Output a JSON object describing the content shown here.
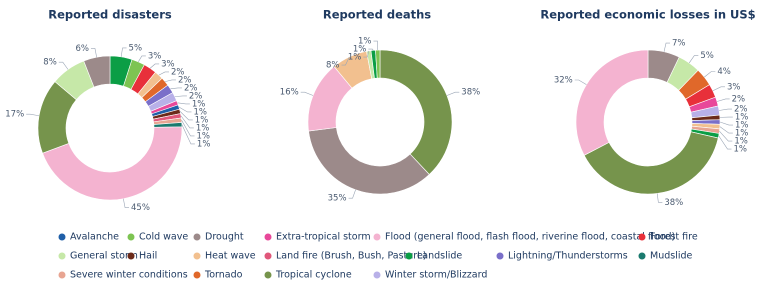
{
  "legend": {
    "names": [
      "Avalanche",
      "Cold wave",
      "Drought",
      "Extra-tropical storm",
      "Flood (general flood, flash flood, riverine flood, coastal flood)",
      "Forest fire",
      "General storm",
      "Hail",
      "Heat wave",
      "Land fire (Brush, Bush, Pasture)",
      "Landslide",
      "Lightning/Thunderstorms",
      "Mudslide",
      "Severe winter conditions",
      "Tornado",
      "Tropical cyclone",
      "Winter storm/Blizzard"
    ],
    "colors": [
      "#1f5fa8",
      "#7dc452",
      "#9c8a8a",
      "#e8489a",
      "#f4b3d0",
      "#e8303a",
      "#c6e8a8",
      "#6b2a1a",
      "#f2c08f",
      "#e0577a",
      "#0b9e45",
      "#7a6fc9",
      "#1a7a6e",
      "#e8a592",
      "#e0682a",
      "#76944c",
      "#b8b0e8"
    ]
  },
  "chart_data": [
    {
      "type": "pie",
      "donut": true,
      "title": "Reported disasters",
      "categories": [
        "Landslide",
        "Cold wave",
        "Forest fire",
        "Heat wave",
        "Tornado",
        "Lightning/Thunderstorms",
        "Winter storm/Blizzard",
        "Extra-tropical storm",
        "Avalanche",
        "Hail",
        "Land fire (Brush, Bush, Pasture)",
        "Severe winter conditions",
        "Mudslide",
        "Flood (general flood, flash flood, riverine flood, coastal flood)",
        "Tropical cyclone",
        "General storm",
        "Drought"
      ],
      "values": [
        5,
        3,
        3,
        2,
        2,
        2,
        2,
        1,
        1,
        1,
        1,
        1,
        1,
        45,
        17,
        8,
        6
      ],
      "value_labels": [
        "5%",
        "3%",
        "3%",
        "2%",
        "2%",
        "2%",
        "2%",
        "1%",
        "1%",
        "1%",
        "1%",
        "1%",
        "1%",
        "45%",
        "17%",
        "8%",
        "6%"
      ]
    },
    {
      "type": "pie",
      "donut": true,
      "title": "Reported deaths",
      "categories": [
        "Tropical cyclone",
        "Drought",
        "Flood (general flood, flash flood, riverine flood, coastal flood)",
        "Heat wave",
        "General storm",
        "Landslide",
        "Cold wave"
      ],
      "values": [
        38,
        35,
        16,
        8,
        1,
        1,
        1
      ],
      "value_labels": [
        "38%",
        "35%",
        "16%",
        "8%",
        "1%",
        "1%",
        "1%"
      ]
    },
    {
      "type": "pie",
      "donut": true,
      "title": "Reported economic losses in US$",
      "categories": [
        "Drought",
        "General storm",
        "Tornado",
        "Forest fire",
        "Extra-tropical storm",
        "Winter storm/Blizzard",
        "Hail",
        "Lightning/Thunderstorms",
        "Heat wave",
        "Severe winter conditions",
        "Landslide",
        "Tropical cyclone",
        "Flood (general flood, flash flood, riverine flood, coastal flood)"
      ],
      "values": [
        7,
        5,
        4,
        3,
        2,
        2,
        1,
        1,
        1,
        1,
        1,
        38,
        32
      ],
      "value_labels": [
        "7%",
        "5%",
        "4%",
        "3%",
        "2%",
        "2%",
        "1%",
        "1%",
        "1%",
        "1%",
        "1%",
        "38%",
        "32%"
      ]
    }
  ]
}
